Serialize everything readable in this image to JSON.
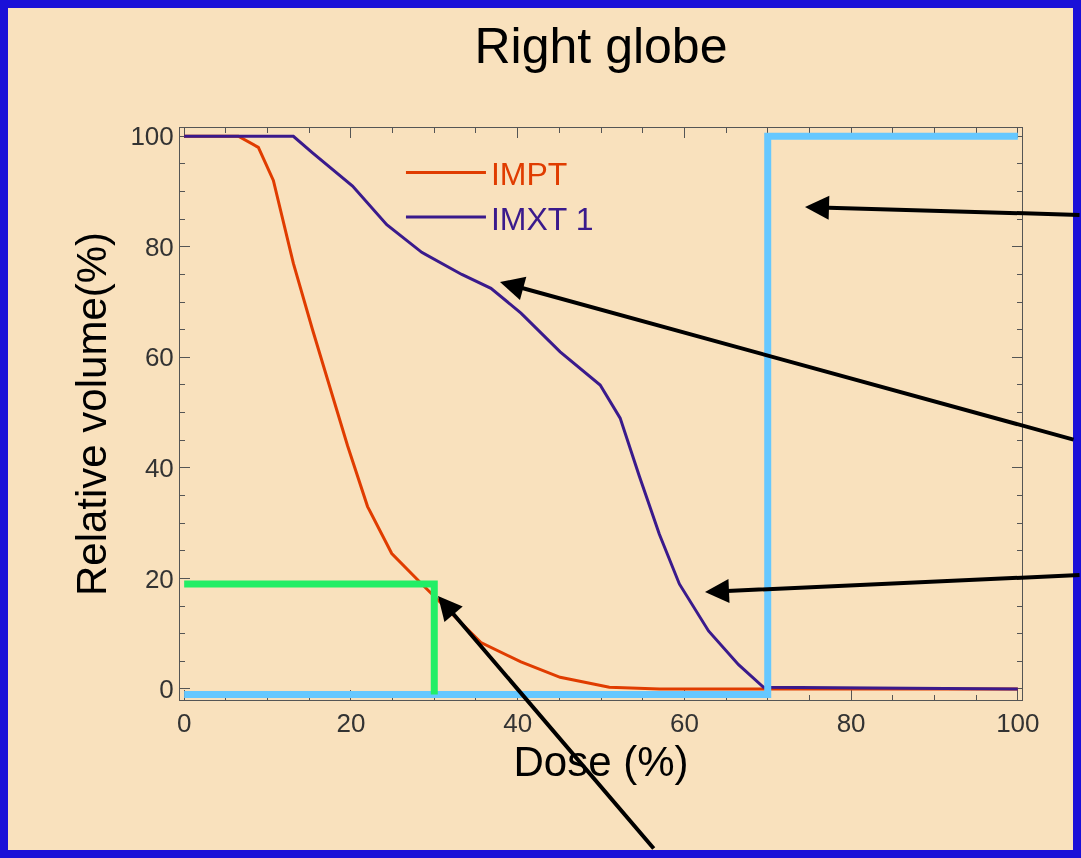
{
  "chart_data": {
    "type": "line",
    "title": "Right globe",
    "xlabel": "Dose (%)",
    "ylabel": "Relative volume(%)",
    "xlim": [
      -0.5,
      100.5
    ],
    "ylim": [
      -2,
      101.5
    ],
    "xticks": [
      0,
      20,
      40,
      60,
      80,
      100
    ],
    "yticks": [
      0,
      20,
      40,
      60,
      80,
      100
    ],
    "grid": false,
    "legend": "top",
    "marker": "none",
    "line_style": "solid",
    "series": [
      {
        "name": "IMPT",
        "color": "#e03c00",
        "x": [
          0,
          6.5,
          8.9,
          10.7,
          13.1,
          15.4,
          17.2,
          19.6,
          22,
          24.9,
          28.5,
          35.6,
          40.4,
          45.1,
          51,
          57,
          100
        ],
        "values": [
          100,
          100,
          98,
          92,
          77,
          65,
          56,
          44,
          33,
          24.5,
          19,
          8.4,
          4.9,
          2.1,
          0.3,
          0,
          0
        ]
      },
      {
        "name": "IMXT 1",
        "color": "#3a1a8c",
        "x": [
          0,
          13.1,
          15.4,
          20.2,
          24.3,
          28.5,
          33.3,
          36.8,
          40.4,
          45.1,
          49.9,
          52.3,
          54.6,
          57,
          59.4,
          62.9,
          66.5,
          69.5,
          100
        ],
        "values": [
          100,
          100,
          97,
          91,
          84,
          79,
          75,
          72.5,
          68,
          61,
          55,
          49,
          38.5,
          28,
          19,
          10.5,
          4.4,
          0.3,
          0
        ]
      },
      {
        "color": "#66c8ff",
        "x": [
          0,
          70,
          70,
          100
        ],
        "values": [
          -1,
          -1,
          100,
          100
        ]
      },
      {
        "color": "#22ee66",
        "x": [
          0,
          30,
          30
        ],
        "values": [
          19,
          19,
          -1
        ]
      }
    ]
  }
}
